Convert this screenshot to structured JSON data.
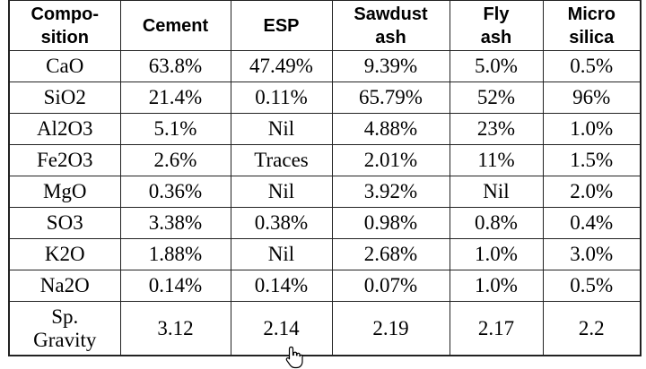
{
  "table": {
    "headers": [
      [
        "Compo-",
        "sition"
      ],
      [
        "Cement"
      ],
      [
        "ESP"
      ],
      [
        "Sawdust",
        "ash"
      ],
      [
        "Fly",
        "ash"
      ],
      [
        "Micro",
        "silica"
      ]
    ],
    "rows": [
      [
        [
          "CaO"
        ],
        [
          "63.8%"
        ],
        [
          "47.49%"
        ],
        [
          "9.39%"
        ],
        [
          "5.0%"
        ],
        [
          "0.5%"
        ]
      ],
      [
        [
          "SiO2"
        ],
        [
          "21.4%"
        ],
        [
          "0.11%"
        ],
        [
          "65.79%"
        ],
        [
          "52%"
        ],
        [
          "96%"
        ]
      ],
      [
        [
          "Al2O3"
        ],
        [
          "5.1%"
        ],
        [
          "Nil"
        ],
        [
          "4.88%"
        ],
        [
          "23%"
        ],
        [
          "1.0%"
        ]
      ],
      [
        [
          "Fe2O3"
        ],
        [
          "2.6%"
        ],
        [
          "Traces"
        ],
        [
          "2.01%"
        ],
        [
          "11%"
        ],
        [
          "1.5%"
        ]
      ],
      [
        [
          "MgO"
        ],
        [
          "0.36%"
        ],
        [
          "Nil"
        ],
        [
          "3.92%"
        ],
        [
          "Nil"
        ],
        [
          "2.0%"
        ]
      ],
      [
        [
          "SO3"
        ],
        [
          "3.38%"
        ],
        [
          "0.38%"
        ],
        [
          "0.98%"
        ],
        [
          "0.8%"
        ],
        [
          "0.4%"
        ]
      ],
      [
        [
          "K2O"
        ],
        [
          "1.88%"
        ],
        [
          "Nil"
        ],
        [
          "2.68%"
        ],
        [
          "1.0%"
        ],
        [
          "3.0%"
        ]
      ],
      [
        [
          "Na2O"
        ],
        [
          "0.14%"
        ],
        [
          "0.14%"
        ],
        [
          "0.07%"
        ],
        [
          "1.0%"
        ],
        [
          "0.5%"
        ]
      ],
      [
        [
          "Sp.",
          "Gravity"
        ],
        [
          "3.12"
        ],
        [
          "2.14"
        ],
        [
          "2.19"
        ],
        [
          "2.17"
        ],
        [
          "2.2"
        ]
      ]
    ]
  }
}
